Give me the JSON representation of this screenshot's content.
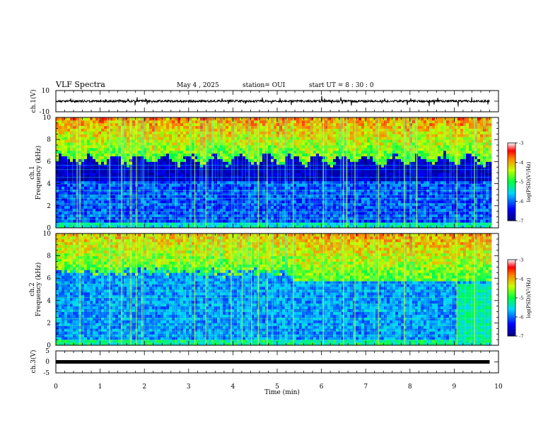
{
  "header": {
    "title": "VLF Spectra",
    "date": "May 4 , 2025",
    "station": "station= OUI",
    "start": "start UT = 8 : 30 : 0"
  },
  "chart_data": [
    {
      "type": "line",
      "name": "ch1-waveform",
      "ylabel": "ch.1(V)",
      "ylim": [
        -10,
        10
      ],
      "yticks": [
        "10",
        "-10"
      ],
      "level": 0,
      "xlim": [
        0,
        10
      ]
    },
    {
      "type": "heatmap",
      "name": "ch1-spectrogram",
      "ylabel": [
        "ch.1",
        "Frequency (kHz)"
      ],
      "ylim": [
        0,
        10
      ],
      "yticks": [
        "0",
        "2",
        "4",
        "6",
        "8",
        "10"
      ],
      "xlim": [
        0,
        10
      ],
      "data_xmax": 9.8,
      "colorbar": {
        "label": "log(PSD)(V²/Hz)",
        "range": [
          -7,
          -3
        ],
        "ticks": [
          "-3",
          "-4",
          "-5",
          "-6",
          "-7"
        ]
      }
    },
    {
      "type": "heatmap",
      "name": "ch2-spectrogram",
      "ylabel": [
        "ch.2",
        "Frequency (kHz)"
      ],
      "ylim": [
        0,
        10
      ],
      "yticks": [
        "0",
        "2",
        "4",
        "6",
        "8",
        "10"
      ],
      "xlim": [
        0,
        10
      ],
      "data_xmax": 9.8,
      "colorbar": {
        "label": "log(PSD)(V²/Hz)",
        "range": [
          -7,
          -3
        ],
        "ticks": [
          "-3",
          "-4",
          "-5",
          "-6",
          "-7"
        ]
      }
    },
    {
      "type": "line",
      "name": "ch3-waveform",
      "ylabel": "ch.3(V)",
      "ylim": [
        -5,
        5
      ],
      "yticks": [
        "5",
        "0",
        "-5"
      ],
      "level": 0,
      "xlim": [
        0,
        10
      ]
    }
  ],
  "xaxis": {
    "label": "Time (min)",
    "ticks": [
      "0",
      "1",
      "2",
      "3",
      "4",
      "5",
      "6",
      "7",
      "8",
      "9",
      "10"
    ]
  }
}
